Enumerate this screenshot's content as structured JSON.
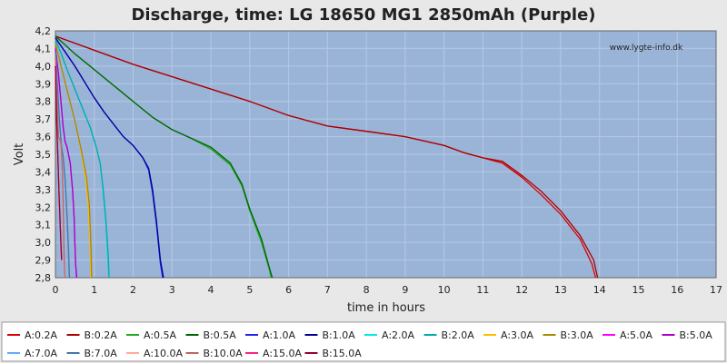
{
  "chart_data": {
    "type": "line",
    "title": "Discharge, time: LG 18650 MG1 2850mAh (Purple)",
    "xlabel": "time in hours",
    "ylabel": "Volt",
    "watermark": "www.lygte-info.dk",
    "xlim": [
      0,
      17
    ],
    "ylim": [
      2.8,
      4.2
    ],
    "xticks": [
      "0",
      "1",
      "2",
      "3",
      "4",
      "5",
      "6",
      "7",
      "8",
      "9",
      "10",
      "11",
      "12",
      "13",
      "14",
      "15",
      "16",
      "17"
    ],
    "yticks": [
      "2,8",
      "2,9",
      "3,0",
      "3,1",
      "3,2",
      "3,3",
      "3,4",
      "3,5",
      "3,6",
      "3,7",
      "3,8",
      "3,9",
      "4,0",
      "4,1",
      "4,2"
    ],
    "grid": true,
    "legend_position": "bottom",
    "plot_background": "#9ab4d8",
    "series": [
      {
        "name": "A:0.2A",
        "color": "#dd0000",
        "x": [
          0,
          1,
          2,
          3,
          4,
          5,
          6,
          7,
          8,
          9,
          10,
          10.5,
          11,
          11.5,
          12,
          12.5,
          13,
          13.5,
          13.8,
          13.9
        ],
        "y": [
          4.17,
          4.09,
          4.01,
          3.94,
          3.87,
          3.8,
          3.72,
          3.66,
          3.63,
          3.6,
          3.55,
          3.51,
          3.48,
          3.45,
          3.37,
          3.27,
          3.16,
          3.02,
          2.88,
          2.8
        ]
      },
      {
        "name": "B:0.2A",
        "color": "#aa0000",
        "x": [
          0,
          1,
          2,
          3,
          4,
          5,
          6,
          7,
          8,
          9,
          10,
          10.5,
          11,
          11.5,
          12,
          12.5,
          13,
          13.5,
          13.85,
          13.95
        ],
        "y": [
          4.17,
          4.09,
          4.01,
          3.94,
          3.87,
          3.8,
          3.72,
          3.66,
          3.63,
          3.6,
          3.55,
          3.51,
          3.48,
          3.46,
          3.38,
          3.29,
          3.18,
          3.04,
          2.9,
          2.8
        ]
      },
      {
        "name": "A:0.5A",
        "color": "#22aa22",
        "x": [
          0,
          0.5,
          1,
          1.5,
          2,
          2.5,
          3,
          3.5,
          4,
          4.5,
          4.8,
          5,
          5.3,
          5.5,
          5.55
        ],
        "y": [
          4.17,
          4.07,
          3.98,
          3.89,
          3.8,
          3.71,
          3.64,
          3.59,
          3.53,
          3.44,
          3.32,
          3.18,
          3.0,
          2.85,
          2.8
        ]
      },
      {
        "name": "B:0.5A",
        "color": "#006600",
        "x": [
          0,
          0.5,
          1,
          1.5,
          2,
          2.5,
          3,
          3.5,
          4,
          4.5,
          4.8,
          5,
          5.3,
          5.5,
          5.58
        ],
        "y": [
          4.17,
          4.07,
          3.98,
          3.89,
          3.8,
          3.71,
          3.64,
          3.59,
          3.54,
          3.45,
          3.33,
          3.19,
          3.02,
          2.86,
          2.8
        ]
      },
      {
        "name": "A:1.0A",
        "color": "#2222ee",
        "x": [
          0,
          0.25,
          0.5,
          0.75,
          1,
          1.25,
          1.5,
          1.75,
          2,
          2.25,
          2.4,
          2.5,
          2.6,
          2.7,
          2.76
        ],
        "y": [
          4.16,
          4.08,
          4.0,
          3.91,
          3.82,
          3.74,
          3.67,
          3.6,
          3.55,
          3.48,
          3.41,
          3.28,
          3.1,
          2.88,
          2.8
        ]
      },
      {
        "name": "B:1.0A",
        "color": "#000099",
        "x": [
          0,
          0.25,
          0.5,
          0.75,
          1,
          1.25,
          1.5,
          1.75,
          2,
          2.25,
          2.4,
          2.5,
          2.6,
          2.7,
          2.78
        ],
        "y": [
          4.16,
          4.08,
          4.0,
          3.91,
          3.82,
          3.74,
          3.67,
          3.6,
          3.55,
          3.48,
          3.42,
          3.3,
          3.12,
          2.9,
          2.8
        ]
      },
      {
        "name": "A:2.0A",
        "color": "#00e8e8",
        "x": [
          0,
          0.15,
          0.3,
          0.5,
          0.7,
          0.9,
          1.05,
          1.15,
          1.22,
          1.3,
          1.35,
          1.37
        ],
        "y": [
          4.15,
          4.07,
          3.98,
          3.87,
          3.76,
          3.65,
          3.54,
          3.45,
          3.3,
          3.1,
          2.9,
          2.8
        ]
      },
      {
        "name": "B:2.0A",
        "color": "#00aaaa",
        "x": [
          0,
          0.15,
          0.3,
          0.5,
          0.7,
          0.9,
          1.05,
          1.15,
          1.22,
          1.3,
          1.36,
          1.38
        ],
        "y": [
          4.15,
          4.07,
          3.98,
          3.87,
          3.76,
          3.65,
          3.54,
          3.45,
          3.32,
          3.12,
          2.92,
          2.8
        ]
      },
      {
        "name": "A:3.0A",
        "color": "#ffbb00",
        "x": [
          0,
          0.1,
          0.2,
          0.35,
          0.5,
          0.65,
          0.78,
          0.85,
          0.88,
          0.9,
          0.91
        ],
        "y": [
          4.13,
          4.04,
          3.95,
          3.82,
          3.69,
          3.53,
          3.36,
          3.2,
          3.05,
          2.9,
          2.8
        ]
      },
      {
        "name": "B:3.0A",
        "color": "#aa8800",
        "x": [
          0,
          0.1,
          0.2,
          0.35,
          0.5,
          0.65,
          0.8,
          0.87,
          0.9,
          0.92,
          0.93
        ],
        "y": [
          4.13,
          4.04,
          3.95,
          3.82,
          3.69,
          3.54,
          3.37,
          3.22,
          3.06,
          2.92,
          2.8
        ]
      },
      {
        "name": "A:5.0A",
        "color": "#ff00ff",
        "x": [
          0,
          0.08,
          0.15,
          0.2,
          0.25,
          0.3,
          0.38,
          0.44,
          0.48,
          0.5,
          0.52,
          0.54
        ],
        "y": [
          4.1,
          3.95,
          3.78,
          3.65,
          3.57,
          3.54,
          3.45,
          3.3,
          3.15,
          3.0,
          2.88,
          2.8
        ]
      },
      {
        "name": "B:5.0A",
        "color": "#aa00cc",
        "x": [
          0,
          0.08,
          0.15,
          0.2,
          0.25,
          0.3,
          0.38,
          0.44,
          0.48,
          0.5,
          0.52,
          0.55
        ],
        "y": [
          4.1,
          3.95,
          3.78,
          3.65,
          3.57,
          3.54,
          3.45,
          3.3,
          3.15,
          3.0,
          2.88,
          2.8
        ]
      },
      {
        "name": "A:7.0A",
        "color": "#66aaff",
        "x": [
          0,
          0.05,
          0.1,
          0.15,
          0.2,
          0.25,
          0.3,
          0.33,
          0.35
        ],
        "y": [
          4.08,
          3.9,
          3.7,
          3.56,
          3.48,
          3.35,
          3.15,
          2.95,
          2.8
        ]
      },
      {
        "name": "B:7.0A",
        "color": "#4477aa",
        "x": [
          0,
          0.05,
          0.1,
          0.15,
          0.2,
          0.25,
          0.3,
          0.34,
          0.36
        ],
        "y": [
          4.08,
          3.9,
          3.7,
          3.56,
          3.48,
          3.35,
          3.15,
          2.95,
          2.8
        ]
      },
      {
        "name": "A:10.0A",
        "color": "#ffaa99",
        "x": [
          0,
          0.04,
          0.08,
          0.12,
          0.15,
          0.18,
          0.2,
          0.22,
          0.23
        ],
        "y": [
          4.05,
          3.8,
          3.6,
          3.58,
          3.55,
          3.4,
          3.2,
          2.95,
          2.8
        ]
      },
      {
        "name": "B:10.0A",
        "color": "#bb6666",
        "x": [
          0,
          0.04,
          0.08,
          0.12,
          0.15,
          0.18,
          0.2,
          0.22,
          0.24
        ],
        "y": [
          4.05,
          3.8,
          3.6,
          3.58,
          3.55,
          3.4,
          3.2,
          2.95,
          2.8
        ]
      },
      {
        "name": "A:15.0A",
        "color": "#ff2288",
        "x": [
          0,
          0.03,
          0.06,
          0.09,
          0.12,
          0.14,
          0.16
        ],
        "y": [
          4.0,
          3.7,
          3.5,
          3.3,
          3.12,
          3.0,
          2.9
        ]
      },
      {
        "name": "B:15.0A",
        "color": "#990033",
        "x": [
          0,
          0.03,
          0.06,
          0.09,
          0.12,
          0.14,
          0.16
        ],
        "y": [
          4.0,
          3.7,
          3.5,
          3.3,
          3.12,
          3.0,
          2.9
        ]
      }
    ]
  }
}
